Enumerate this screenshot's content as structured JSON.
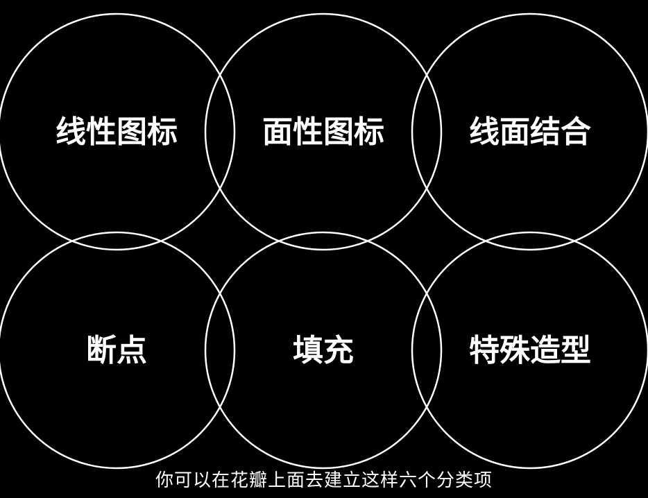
{
  "colors": {
    "background": "#000000",
    "circle_stroke": "#ffffff",
    "text": "#ffffff"
  },
  "categories": [
    {
      "label": "线性图标"
    },
    {
      "label": "面性图标"
    },
    {
      "label": "线面结合"
    },
    {
      "label": "断点"
    },
    {
      "label": "填充"
    },
    {
      "label": "特殊造型"
    }
  ],
  "subtitle": "你可以在花瓣上面去建立这样六个分类项"
}
